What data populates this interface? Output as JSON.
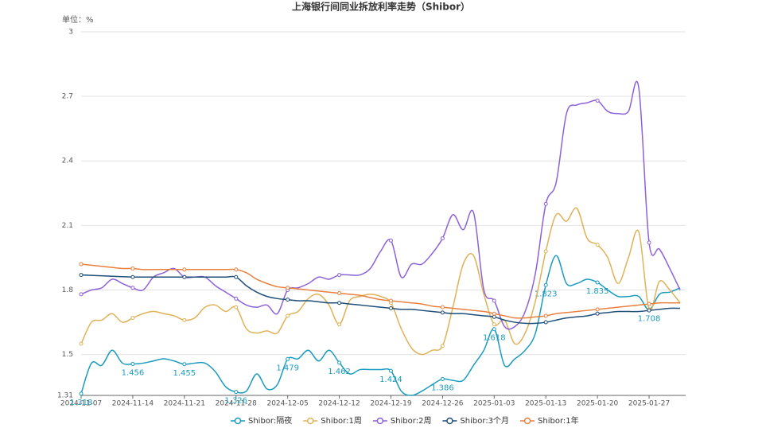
{
  "chart_data": {
    "type": "line",
    "title": "上海银行间同业拆放利率走势（Shibor）",
    "unit_label": "单位：%",
    "categories": [
      "2024-11-07",
      null,
      null,
      null,
      null,
      "2024-11-14",
      null,
      null,
      null,
      null,
      "2024-11-21",
      null,
      null,
      null,
      null,
      "2024-11-28",
      null,
      null,
      null,
      null,
      "2024-12-05",
      null,
      null,
      null,
      null,
      "2024-12-12",
      null,
      null,
      null,
      null,
      "2024-12-19",
      null,
      null,
      null,
      null,
      "2024-12-26",
      null,
      null,
      null,
      null,
      "2025-01-03",
      null,
      null,
      null,
      null,
      "2025-01-13",
      null,
      null,
      null,
      null,
      "2025-01-20",
      null,
      null,
      null,
      null,
      "2025-01-27",
      null,
      null,
      null
    ],
    "series": [
      {
        "name": "Shibor:隔夜",
        "color": "#1a9bbf",
        "values": [
          1.318,
          1.46,
          1.45,
          1.52,
          1.46,
          1.456,
          1.46,
          1.47,
          1.48,
          1.47,
          1.455,
          1.46,
          1.46,
          1.42,
          1.35,
          1.326,
          1.33,
          1.41,
          1.34,
          1.36,
          1.479,
          1.48,
          1.52,
          1.47,
          1.52,
          1.462,
          1.41,
          1.43,
          1.43,
          1.43,
          1.424,
          1.33,
          1.31,
          1.33,
          1.36,
          1.386,
          1.38,
          1.38,
          1.45,
          1.52,
          1.618,
          1.45,
          1.48,
          1.52,
          1.6,
          1.823,
          1.96,
          1.83,
          1.83,
          1.85,
          1.835,
          1.8,
          1.77,
          1.77,
          1.77,
          1.708,
          1.78,
          1.79,
          1.81
        ]
      },
      {
        "name": "Shibor:1周",
        "color": "#e0b257",
        "values": [
          1.55,
          1.65,
          1.66,
          1.69,
          1.65,
          1.67,
          1.69,
          1.7,
          1.69,
          1.68,
          1.66,
          1.67,
          1.72,
          1.73,
          1.7,
          1.72,
          1.62,
          1.6,
          1.61,
          1.6,
          1.68,
          1.7,
          1.76,
          1.78,
          1.73,
          1.64,
          1.75,
          1.77,
          1.78,
          1.77,
          1.74,
          1.62,
          1.53,
          1.5,
          1.52,
          1.54,
          1.72,
          1.92,
          1.96,
          1.78,
          1.64,
          1.66,
          1.55,
          1.6,
          1.75,
          1.98,
          2.15,
          2.12,
          2.18,
          2.04,
          2.01,
          1.95,
          1.83,
          1.95,
          2.07,
          1.71,
          1.84,
          1.8,
          1.74
        ]
      },
      {
        "name": "Shibor:2周",
        "color": "#8c62d8",
        "values": [
          1.78,
          1.8,
          1.81,
          1.85,
          1.83,
          1.81,
          1.8,
          1.86,
          1.88,
          1.9,
          1.86,
          1.86,
          1.86,
          1.82,
          1.79,
          1.76,
          1.73,
          1.72,
          1.73,
          1.69,
          1.8,
          1.81,
          1.83,
          1.86,
          1.85,
          1.87,
          1.87,
          1.87,
          1.9,
          1.98,
          2.03,
          1.86,
          1.92,
          1.92,
          1.97,
          2.04,
          2.15,
          2.08,
          2.16,
          1.8,
          1.75,
          1.63,
          1.63,
          1.7,
          1.88,
          2.2,
          2.3,
          2.62,
          2.66,
          2.67,
          2.68,
          2.63,
          2.62,
          2.63,
          2.74,
          2.02,
          1.99,
          1.9,
          1.8
        ]
      },
      {
        "name": "Shibor:3个月",
        "color": "#1f4e79",
        "values": [
          1.87,
          1.868,
          1.866,
          1.864,
          1.862,
          1.86,
          1.86,
          1.86,
          1.86,
          1.86,
          1.86,
          1.86,
          1.86,
          1.86,
          1.86,
          1.86,
          1.82,
          1.79,
          1.77,
          1.76,
          1.755,
          1.75,
          1.75,
          1.745,
          1.74,
          1.74,
          1.735,
          1.73,
          1.725,
          1.72,
          1.715,
          1.71,
          1.71,
          1.705,
          1.7,
          1.695,
          1.69,
          1.69,
          1.685,
          1.68,
          1.675,
          1.66,
          1.65,
          1.645,
          1.645,
          1.65,
          1.66,
          1.67,
          1.675,
          1.68,
          1.69,
          1.695,
          1.7,
          1.7,
          1.7,
          1.705,
          1.71,
          1.715,
          1.715
        ]
      },
      {
        "name": "Shibor:1年",
        "color": "#e8803e",
        "values": [
          1.92,
          1.915,
          1.91,
          1.905,
          1.9,
          1.9,
          1.895,
          1.895,
          1.895,
          1.895,
          1.895,
          1.895,
          1.895,
          1.895,
          1.895,
          1.895,
          1.88,
          1.85,
          1.83,
          1.815,
          1.81,
          1.805,
          1.8,
          1.795,
          1.79,
          1.785,
          1.78,
          1.775,
          1.765,
          1.755,
          1.75,
          1.745,
          1.74,
          1.735,
          1.725,
          1.72,
          1.715,
          1.71,
          1.705,
          1.7,
          1.69,
          1.68,
          1.67,
          1.67,
          1.675,
          1.68,
          1.69,
          1.695,
          1.7,
          1.705,
          1.71,
          1.715,
          1.72,
          1.725,
          1.73,
          1.735,
          1.74,
          1.74,
          1.74
        ]
      }
    ],
    "ylim": [
      1.31,
      3
    ],
    "yticks": [
      1.31,
      1.5,
      1.8,
      2.1,
      2.4,
      2.7,
      3
    ],
    "grid": true,
    "legend": "bottom"
  }
}
